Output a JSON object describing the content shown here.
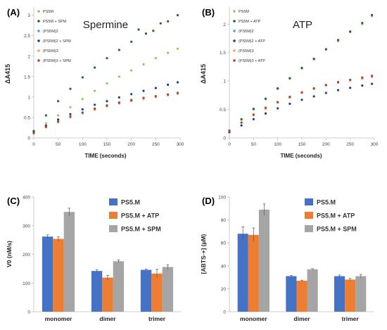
{
  "chart_data": [
    {
      "panel": "(A)",
      "type": "scatter",
      "title": "Spermine",
      "xlabel": "TIME (seconds)",
      "ylabel": "ΔA415",
      "xlim": [
        0,
        300
      ],
      "ylim": [
        0,
        3.2
      ],
      "xticks": [
        "0",
        "50",
        "100",
        "150",
        "200",
        "250",
        "300"
      ],
      "yticks": [
        "0",
        "0.5",
        "1",
        "1.5",
        "2",
        "2.5",
        "3"
      ],
      "legend_position": "top-left",
      "series": [
        {
          "name": "PS5M",
          "color": "#8ccc5a",
          "x": [
            0,
            25,
            50,
            75,
            100,
            125,
            150,
            175,
            200,
            225,
            250,
            275,
            295
          ],
          "y": [
            0.15,
            0.35,
            0.55,
            0.75,
            0.95,
            1.15,
            1.33,
            1.5,
            1.65,
            1.8,
            1.95,
            2.08,
            2.18
          ]
        },
        {
          "name": "PS5M + SPM",
          "color": "#1f6b2e",
          "x": [
            0,
            25,
            50,
            75,
            100,
            125,
            150,
            175,
            200,
            215,
            230,
            245,
            260,
            275,
            295
          ],
          "y": [
            0.17,
            0.55,
            0.9,
            1.2,
            1.48,
            1.72,
            1.95,
            2.15,
            2.35,
            2.65,
            2.55,
            2.62,
            2.8,
            2.85,
            3.0
          ]
        },
        {
          "name": "(PS5M)2",
          "color": "#3cb3b3",
          "x": [
            0,
            25,
            50,
            75,
            100,
            125,
            150,
            175,
            200,
            225,
            250,
            275,
            295
          ],
          "y": [
            0.12,
            0.28,
            0.4,
            0.52,
            0.62,
            0.72,
            0.8,
            0.87,
            0.93,
            0.98,
            1.02,
            1.06,
            1.1
          ]
        },
        {
          "name": "(PS5M)2 + SPM",
          "color": "#1f3a9e",
          "x": [
            0,
            25,
            50,
            75,
            100,
            125,
            150,
            175,
            200,
            225,
            250,
            275,
            295
          ],
          "y": [
            0.13,
            0.3,
            0.45,
            0.58,
            0.7,
            0.81,
            0.9,
            0.99,
            1.07,
            1.15,
            1.22,
            1.3,
            1.36
          ]
        },
        {
          "name": "(PS5M)3",
          "color": "#f0a868",
          "x": [
            0,
            25,
            50,
            75,
            100,
            125,
            150,
            175,
            200,
            225,
            250,
            275,
            295
          ],
          "y": [
            0.11,
            0.26,
            0.38,
            0.5,
            0.6,
            0.69,
            0.77,
            0.84,
            0.9,
            0.95,
            1.0,
            1.04,
            1.08
          ]
        },
        {
          "name": "(PS5M)3 + SPM",
          "color": "#c0392b",
          "x": [
            0,
            25,
            50,
            75,
            100,
            125,
            150,
            175,
            200,
            225,
            250,
            275,
            295
          ],
          "y": [
            0.12,
            0.27,
            0.4,
            0.52,
            0.62,
            0.71,
            0.79,
            0.86,
            0.92,
            0.98,
            1.02,
            1.06,
            1.1
          ]
        }
      ]
    },
    {
      "panel": "(B)",
      "type": "scatter",
      "title": "ATP",
      "xlabel": "TIME (seconds)",
      "ylabel": "ΔA415",
      "xlim": [
        0,
        300
      ],
      "ylim": [
        0,
        2.3
      ],
      "xticks": [
        "0",
        "50",
        "100",
        "150",
        "200",
        "250",
        "300"
      ],
      "yticks": [
        "0",
        "0.5",
        "1",
        "1.5",
        "2"
      ],
      "legend_position": "top-left",
      "series": [
        {
          "name": "PS5M",
          "color": "#8ccc5a",
          "x": [
            0,
            25,
            50,
            75,
            100,
            125,
            150,
            175,
            200,
            225,
            250,
            275,
            295
          ],
          "y": [
            0.12,
            0.32,
            0.5,
            0.68,
            0.86,
            1.04,
            1.22,
            1.38,
            1.55,
            1.7,
            1.86,
            2.0,
            2.14
          ]
        },
        {
          "name": "PS5M + ATP",
          "color": "#1f6b2e",
          "x": [
            0,
            25,
            50,
            75,
            100,
            125,
            150,
            175,
            200,
            225,
            250,
            275,
            295
          ],
          "y": [
            0.13,
            0.33,
            0.51,
            0.69,
            0.87,
            1.05,
            1.23,
            1.39,
            1.56,
            1.72,
            1.87,
            2.02,
            2.16
          ]
        },
        {
          "name": "(PS5M)2",
          "color": "#3cb3b3",
          "x": [
            0,
            25,
            50,
            75,
            100,
            125,
            150,
            175,
            200,
            225,
            250,
            275,
            295
          ],
          "y": [
            0.12,
            0.27,
            0.4,
            0.52,
            0.63,
            0.72,
            0.8,
            0.87,
            0.93,
            0.98,
            1.02,
            1.05,
            1.08
          ]
        },
        {
          "name": "(PS5M)2 + ATP",
          "color": "#1f3a9e",
          "x": [
            0,
            25,
            50,
            75,
            100,
            125,
            150,
            175,
            200,
            225,
            250,
            275,
            295
          ],
          "y": [
            0.1,
            0.22,
            0.33,
            0.43,
            0.52,
            0.6,
            0.67,
            0.73,
            0.79,
            0.84,
            0.88,
            0.92,
            0.95
          ]
        },
        {
          "name": "(PS5M)3",
          "color": "#f0a868",
          "x": [
            0,
            25,
            50,
            75,
            100,
            125,
            150,
            175,
            200,
            225,
            250,
            275,
            295
          ],
          "y": [
            0.12,
            0.27,
            0.4,
            0.51,
            0.62,
            0.71,
            0.79,
            0.86,
            0.92,
            0.97,
            1.01,
            1.04,
            1.07
          ]
        },
        {
          "name": "(PS5M)3 + ATP",
          "color": "#c0392b",
          "x": [
            0,
            25,
            50,
            75,
            100,
            125,
            150,
            175,
            200,
            225,
            250,
            275,
            295
          ],
          "y": [
            0.12,
            0.27,
            0.41,
            0.53,
            0.63,
            0.72,
            0.8,
            0.87,
            0.93,
            0.98,
            1.02,
            1.06,
            1.09
          ]
        }
      ]
    },
    {
      "panel": "(C)",
      "type": "bar",
      "ylabel": "V0 (nM/s)",
      "ylim": [
        0,
        400
      ],
      "yticks": [
        "0",
        "100",
        "200",
        "300",
        "400"
      ],
      "categories": [
        "monomer",
        "dimer",
        "trimer"
      ],
      "legend_position": "top-right",
      "series": [
        {
          "name": "PS5.M",
          "color": "#4472c4",
          "values": [
            262,
            142,
            146
          ],
          "errors": [
            6,
            4,
            3
          ]
        },
        {
          "name": "PS5.M + ATP",
          "color": "#ed7d31",
          "values": [
            254,
            119,
            133
          ],
          "errors": [
            8,
            8,
            15
          ]
        },
        {
          "name": "PS5.M + SPM",
          "color": "#a5a5a5",
          "values": [
            348,
            176,
            156
          ],
          "errors": [
            13,
            5,
            8
          ]
        }
      ]
    },
    {
      "panel": "(D)",
      "type": "bar",
      "ylabel": "[ABTS·+] (µM)",
      "ylim": [
        0,
        100
      ],
      "yticks": [
        "0",
        "20",
        "40",
        "60",
        "80",
        "100"
      ],
      "categories": [
        "monomer",
        "dimer",
        "trimer"
      ],
      "legend_position": "top-right",
      "series": [
        {
          "name": "PS5.M",
          "color": "#4472c4",
          "values": [
            68,
            31,
            31
          ],
          "errors": [
            6,
            0.6,
            1
          ]
        },
        {
          "name": "PS5.M + ATP",
          "color": "#ed7d31",
          "values": [
            67,
            27,
            28
          ],
          "errors": [
            6,
            0.5,
            1
          ]
        },
        {
          "name": "PS5.M + SPM",
          "color": "#a5a5a5",
          "values": [
            89,
            37,
            31
          ],
          "errors": [
            5,
            0.5,
            1.5
          ]
        }
      ]
    }
  ]
}
